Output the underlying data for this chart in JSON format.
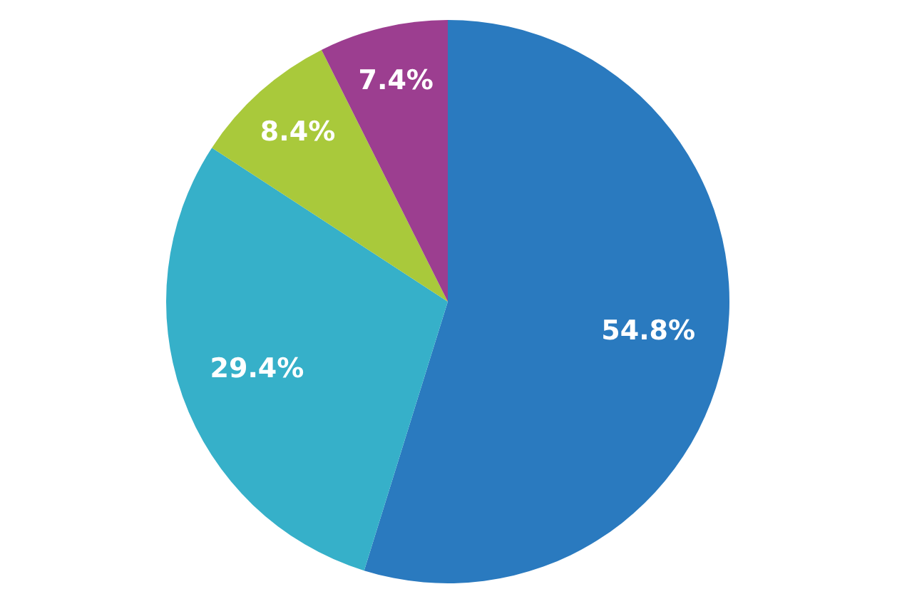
{
  "chart_data": {
    "type": "pie",
    "categories": [
      null,
      null,
      null,
      null
    ],
    "values": [
      54.8,
      29.4,
      8.4,
      7.4
    ],
    "colors": [
      "#2a7abf",
      "#36b0c9",
      "#a9c93b",
      "#9c3e90"
    ],
    "value_labels": [
      "54.8%",
      "29.4%",
      "8.4%",
      "7.4%"
    ],
    "legend": false
  }
}
